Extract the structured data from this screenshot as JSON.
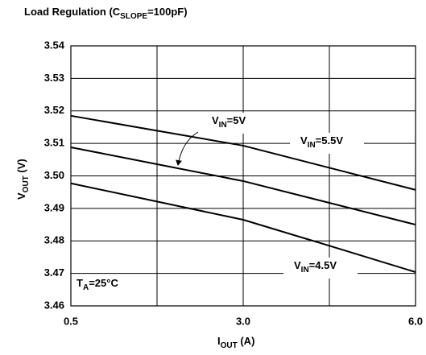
{
  "chart_data": {
    "type": "line",
    "title": [
      "Load Regulation (C",
      "SLOPE",
      "=100pF)"
    ],
    "x_label": [
      "I",
      "OUT",
      " (A)"
    ],
    "y_label": [
      "V",
      "OUT",
      " (V)"
    ],
    "categories": [
      "0.5",
      null,
      "3.0",
      null,
      "6.0"
    ],
    "series": [
      {
        "color": "#000000",
        "values": [
          3.5185,
          3.5139,
          3.5093,
          3.5025,
          3.4957
        ]
      },
      {
        "color": "#000000",
        "values": [
          3.5088,
          3.5036,
          3.4984,
          3.4917,
          3.485
        ]
      },
      {
        "color": "#000000",
        "values": [
          3.4977,
          3.4921,
          3.4865,
          3.4785,
          3.4704
        ]
      }
    ],
    "ylim": [
      3.46,
      3.54
    ],
    "yticks": [
      3.46,
      3.47,
      3.48,
      3.49,
      {
        "value": 3.5,
        "label": "3.50"
      },
      3.51,
      3.52,
      3.53,
      3.54
    ],
    "grid": true,
    "annotations": [
      [
        "V",
        "IN",
        "=5V"
      ],
      [
        "V",
        "IN",
        "=5.5V"
      ],
      [
        "V",
        "IN",
        "=4.5V"
      ],
      [
        "T",
        "A",
        "=25°C"
      ]
    ]
  }
}
